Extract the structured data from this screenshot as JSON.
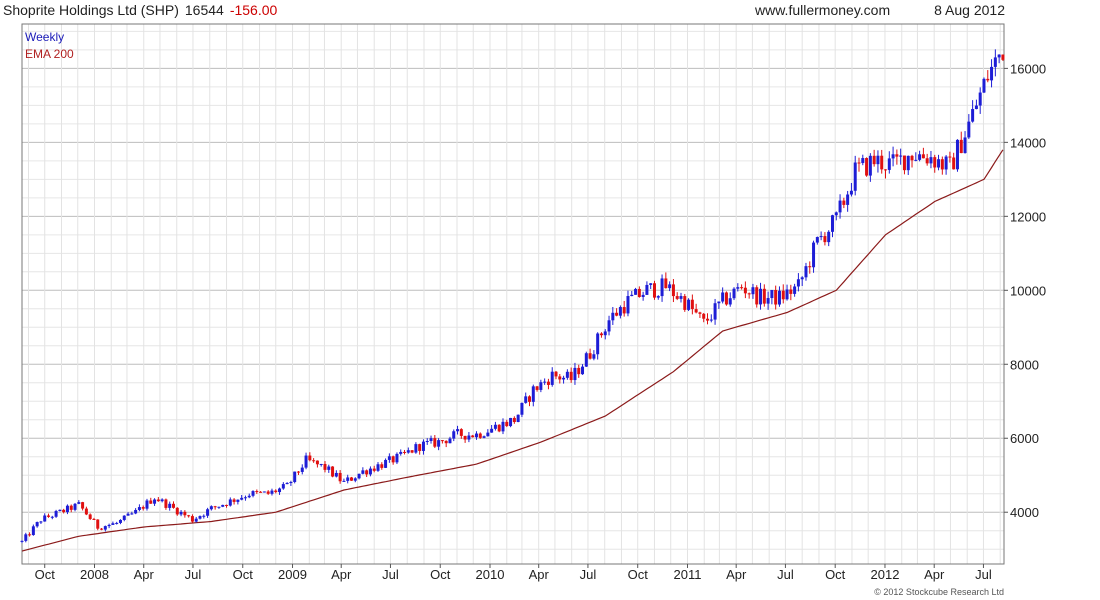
{
  "header": {
    "title": "Shoprite Holdings Ltd (SHP)",
    "last": "16544",
    "change": "-156.00",
    "site": "www.fullermoney.com",
    "date": "8 Aug 2012"
  },
  "legend": {
    "period": "Weekly",
    "ema": "EMA 200"
  },
  "copyright": "© 2012 Stockcube Research Ltd",
  "colors": {
    "up": "#1d1dd6",
    "down": "#e01010",
    "ema": "#8b1a1a",
    "grid": "#d4d4d4",
    "title": "#222222",
    "change": "#cc0000",
    "legend_weekly": "#1a1ab8",
    "legend_ema": "#b02020"
  },
  "chart_data": {
    "type": "line",
    "chart_style": "weekly candlestick with EMA 200 overlay",
    "y_axis_side": "right",
    "ylim": [
      2600,
      17200
    ],
    "y_ticks": [
      4000,
      6000,
      8000,
      10000,
      12000,
      14000,
      16000
    ],
    "grid": true,
    "x_ticks": [
      "Oct",
      "2008",
      "Apr",
      "Jul",
      "Oct",
      "2009",
      "Apr",
      "Jul",
      "Oct",
      "2010",
      "Apr",
      "Jul",
      "Oct",
      "2011",
      "Apr",
      "Jul",
      "Oct",
      "2012",
      "Apr",
      "Jul"
    ],
    "x_tick_dates": [
      "2007-10-01",
      "2008-01-01",
      "2008-04-01",
      "2008-07-01",
      "2008-10-01",
      "2009-01-01",
      "2009-04-01",
      "2009-07-01",
      "2009-10-01",
      "2010-01-01",
      "2010-04-01",
      "2010-07-01",
      "2010-10-01",
      "2011-01-01",
      "2011-04-01",
      "2011-07-01",
      "2011-10-01",
      "2012-01-01",
      "2012-04-01",
      "2012-07-01"
    ],
    "x_start": "2007-08-20",
    "x_end": "2012-08-08",
    "price_series": {
      "name": "Weekly",
      "dates": [
        "2007-08-20",
        "2007-09-24",
        "2007-10-29",
        "2007-12-03",
        "2008-01-07",
        "2008-02-11",
        "2008-03-17",
        "2008-04-21",
        "2008-05-26",
        "2008-06-30",
        "2008-08-04",
        "2008-09-08",
        "2008-10-13",
        "2008-11-17",
        "2008-12-22",
        "2009-01-26",
        "2009-03-02",
        "2009-04-06",
        "2009-05-11",
        "2009-06-15",
        "2009-07-20",
        "2009-08-24",
        "2009-09-28",
        "2009-11-02",
        "2009-12-07",
        "2010-01-11",
        "2010-02-15",
        "2010-03-22",
        "2010-04-26",
        "2010-05-31",
        "2010-07-05",
        "2010-08-09",
        "2010-09-13",
        "2010-10-18",
        "2010-11-22",
        "2010-12-27",
        "2011-01-31",
        "2011-03-07",
        "2011-04-11",
        "2011-05-16",
        "2011-06-20",
        "2011-07-25",
        "2011-08-29",
        "2011-10-03",
        "2011-11-07",
        "2011-12-12",
        "2012-01-16",
        "2012-02-20",
        "2012-03-26",
        "2012-04-30",
        "2012-06-04",
        "2012-07-09",
        "2012-08-06"
      ],
      "values": [
        3200,
        3800,
        4000,
        4200,
        3600,
        3700,
        4000,
        4400,
        4100,
        3800,
        4100,
        4300,
        4500,
        4500,
        4700,
        5400,
        5200,
        4800,
        5100,
        5300,
        5500,
        5800,
        5900,
        6100,
        6100,
        6300,
        6500,
        7300,
        7700,
        7600,
        8300,
        9200,
        9700,
        10000,
        10100,
        9700,
        9100,
        9700,
        10100,
        9800,
        9800,
        10100,
        11300,
        11900,
        13200,
        13500,
        13400,
        13700,
        13600,
        13300,
        14500,
        15800,
        16544
      ]
    },
    "ema_series": {
      "name": "EMA 200",
      "dates": [
        "2007-08-20",
        "2007-12-03",
        "2008-04-01",
        "2008-08-04",
        "2008-12-01",
        "2009-04-06",
        "2009-08-03",
        "2009-12-07",
        "2010-04-06",
        "2010-08-02",
        "2010-12-06",
        "2011-03-07",
        "2011-07-04",
        "2011-10-03",
        "2012-01-02",
        "2012-04-02",
        "2012-07-02",
        "2012-08-06"
      ],
      "values": [
        2950,
        3350,
        3600,
        3750,
        4000,
        4600,
        4950,
        5300,
        5900,
        6600,
        7800,
        8900,
        9400,
        10000,
        11500,
        12400,
        13000,
        13800
      ]
    }
  }
}
